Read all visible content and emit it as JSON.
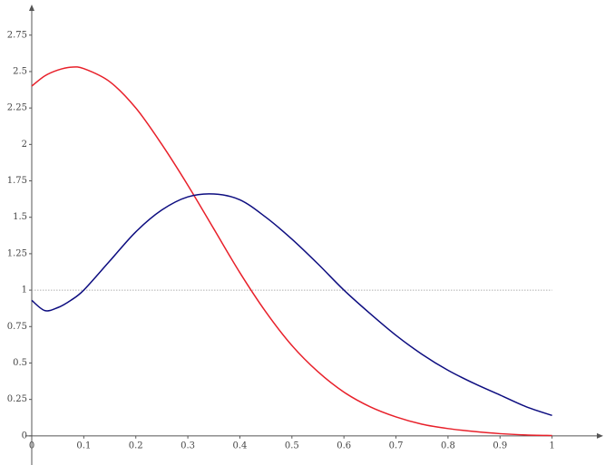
{
  "chart_data": {
    "type": "line",
    "x": [
      0,
      0.025,
      0.05,
      0.075,
      0.1,
      0.15,
      0.2,
      0.25,
      0.3,
      0.35,
      0.4,
      0.45,
      0.5,
      0.55,
      0.6,
      0.65,
      0.7,
      0.75,
      0.8,
      0.85,
      0.9,
      0.95,
      1
    ],
    "series": [
      {
        "color": "#e8202a",
        "values": [
          2.4,
          2.47,
          2.51,
          2.53,
          2.52,
          2.43,
          2.25,
          2.0,
          1.72,
          1.42,
          1.12,
          0.85,
          0.62,
          0.44,
          0.3,
          0.2,
          0.13,
          0.08,
          0.05,
          0.03,
          0.015,
          0.006,
          0.002
        ]
      },
      {
        "color": "#0d0d80",
        "values": [
          0.93,
          0.86,
          0.88,
          0.93,
          1.0,
          1.2,
          1.4,
          1.55,
          1.64,
          1.66,
          1.62,
          1.5,
          1.35,
          1.18,
          1.0,
          0.84,
          0.69,
          0.56,
          0.45,
          0.36,
          0.28,
          0.2,
          0.14
        ]
      }
    ],
    "xlim": [
      0,
      1.1
    ],
    "ylim": [
      -0.2,
      2.96
    ],
    "xticks": [
      0,
      0.1,
      0.2,
      0.3,
      0.4,
      0.5,
      0.6,
      0.7,
      0.8,
      0.9,
      1
    ],
    "yticks": [
      0,
      0.25,
      0.5,
      0.75,
      1,
      1.25,
      1.5,
      1.75,
      2,
      2.25,
      2.5,
      2.75
    ],
    "hline": 1,
    "hline_color": "#b0b0b0"
  }
}
